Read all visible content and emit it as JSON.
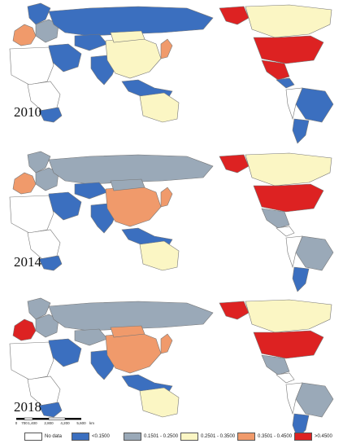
{
  "map": {
    "panels": [
      {
        "year": "2010",
        "regions": {
          "western_europe": "c4",
          "northern_europe": "c1",
          "eastern_europe": "c2",
          "russia": "c1",
          "kazakhstan": "c1",
          "middle_east": "c1",
          "india": "c1",
          "china": "c3",
          "mongolia": "c3",
          "japan_korea": "c4",
          "southeast_asia": "c1",
          "south_africa": "c1",
          "north_africa": "c0",
          "central_africa": "c0",
          "australia": "c3",
          "alaska": "c5",
          "canada": "c3",
          "usa": "c5",
          "mexico": "c5",
          "central_america": "c1",
          "brazil": "c1",
          "argentina": "c1",
          "south_america_west": "c0"
        }
      },
      {
        "year": "2014",
        "regions": {
          "western_europe": "c4",
          "northern_europe": "c2",
          "eastern_europe": "c2",
          "russia": "c2",
          "kazakhstan": "c1",
          "middle_east": "c1",
          "india": "c1",
          "china": "c4",
          "mongolia": "c2",
          "japan_korea": "c4",
          "southeast_asia": "c1",
          "south_africa": "c1",
          "north_africa": "c0",
          "central_africa": "c0",
          "australia": "c3",
          "alaska": "c5",
          "canada": "c3",
          "usa": "c5",
          "mexico": "c2",
          "central_america": "c0",
          "brazil": "c2",
          "argentina": "c1",
          "south_america_west": "c0"
        }
      },
      {
        "year": "2018",
        "regions": {
          "western_europe": "c5",
          "northern_europe": "c2",
          "eastern_europe": "c2",
          "russia": "c2",
          "kazakhstan": "c2",
          "middle_east": "c1",
          "india": "c1",
          "china": "c4",
          "mongolia": "c4",
          "japan_korea": "c4",
          "southeast_asia": "c1",
          "south_africa": "c1",
          "north_africa": "c0",
          "central_africa": "c0",
          "australia": "c3",
          "alaska": "c5",
          "canada": "c3",
          "usa": "c5",
          "mexico": "c2",
          "central_america": "c0",
          "brazil": "c2",
          "argentina": "c1",
          "south_america_west": "c0"
        }
      }
    ],
    "scale": {
      "ticks": [
        "0",
        "700",
        "1,400",
        "2,800",
        "4,200",
        "5,600"
      ],
      "unit": "km"
    },
    "legend": [
      {
        "key": "c0",
        "label": "No data",
        "color": "#ffffff"
      },
      {
        "key": "c1",
        "label": "<0.1500",
        "color": "#3b6fbf"
      },
      {
        "key": "c2",
        "label": "0.1501 - 0.2500",
        "color": "#9aa9b8"
      },
      {
        "key": "c3",
        "label": "0.2501 - 0.3500",
        "color": "#fbf6c4"
      },
      {
        "key": "c4",
        "label": "0.3501 - 0.4500",
        "color": "#f09a6b"
      },
      {
        "key": "c5",
        "label": ">0.4500",
        "color": "#dd2222"
      }
    ]
  }
}
